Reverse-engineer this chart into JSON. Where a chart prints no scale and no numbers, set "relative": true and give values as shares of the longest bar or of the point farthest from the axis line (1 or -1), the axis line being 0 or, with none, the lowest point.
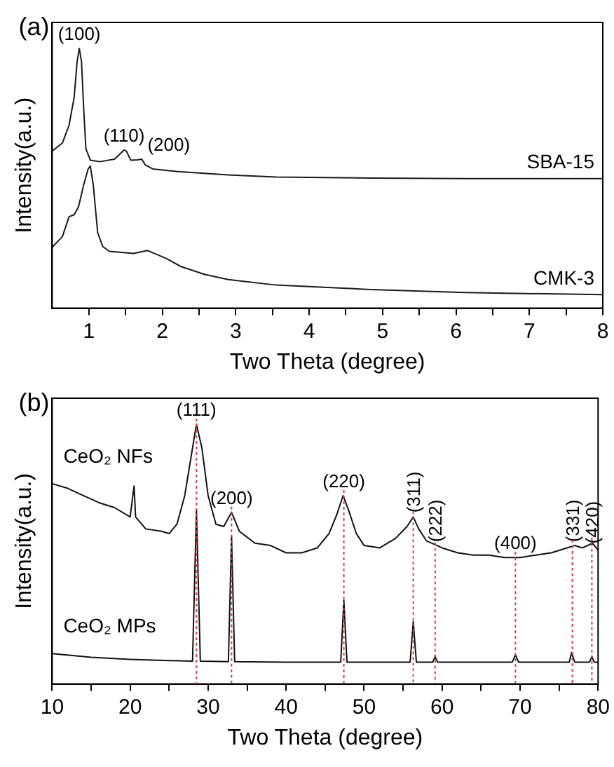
{
  "chart_data": [
    {
      "type": "line",
      "title": "(a)",
      "xlabel": "Two Theta (degree)",
      "ylabel": "Intensity(a.u.)",
      "relative": true,
      "tick_labels": "x",
      "xlim": [
        0.5,
        8
      ],
      "xticks": [
        1,
        {
          "value": 1.5,
          "label": null
        },
        2,
        {
          "value": 2.5,
          "label": null
        },
        3,
        {
          "value": 3.5,
          "label": null
        },
        4,
        {
          "value": 4.5,
          "label": null
        },
        5,
        {
          "value": 5.5,
          "label": null
        },
        6,
        {
          "value": 6.5,
          "label": null
        },
        7,
        {
          "value": 7.5,
          "label": null
        },
        8
      ],
      "annotations": [
        {
          "text": "(100)",
          "x": 0.87,
          "y": 1.0
        },
        {
          "text": "(110)",
          "x": 1.48,
          "y": 0.609
        },
        {
          "text": "(200)",
          "x": 1.72,
          "y": 0.574
        }
      ],
      "series": [
        {
          "name": "SBA-15",
          "color": "#1a1a1a",
          "x": [
            0.5,
            0.64,
            0.73,
            0.8,
            0.84,
            0.87,
            0.9,
            0.93,
            0.96,
            1.02,
            1.15,
            1.35,
            1.48,
            1.51,
            1.57,
            1.67,
            1.72,
            1.77,
            1.87,
            2.25,
            2.9,
            3.55,
            4.84,
            6.13,
            8.0
          ],
          "values": [
            0.605,
            0.636,
            0.704,
            0.812,
            0.949,
            1.0,
            0.949,
            0.766,
            0.613,
            0.57,
            0.564,
            0.574,
            0.609,
            0.605,
            0.57,
            0.571,
            0.574,
            0.551,
            0.536,
            0.525,
            0.513,
            0.505,
            0.501,
            0.499,
            0.499
          ]
        },
        {
          "name": "CMK-3",
          "color": "#1a1a1a",
          "x": [
            0.5,
            0.64,
            0.73,
            0.8,
            0.86,
            0.93,
            0.99,
            1.02,
            1.06,
            1.12,
            1.19,
            1.28,
            1.61,
            1.8,
            2.06,
            2.25,
            2.58,
            2.9,
            3.55,
            4.84,
            6.13,
            8.0
          ],
          "values": [
            0.234,
            0.276,
            0.352,
            0.36,
            0.391,
            0.475,
            0.536,
            0.547,
            0.475,
            0.291,
            0.237,
            0.219,
            0.211,
            0.222,
            0.191,
            0.161,
            0.13,
            0.11,
            0.089,
            0.072,
            0.06,
            0.052
          ]
        }
      ]
    },
    {
      "type": "line",
      "title": "(b)",
      "xlabel": "Two Theta (degree)",
      "ylabel": "Intensity(a.u.)",
      "relative": true,
      "tick_labels": "x",
      "xlim": [
        10,
        80
      ],
      "xticks": [
        10,
        {
          "value": 15,
          "label": null
        },
        20,
        {
          "value": 25,
          "label": null
        },
        30,
        {
          "value": 35,
          "label": null
        },
        40,
        {
          "value": 45,
          "label": null
        },
        50,
        {
          "value": 55,
          "label": null
        },
        60,
        {
          "value": 65,
          "label": null
        },
        70,
        {
          "value": 75,
          "label": null
        },
        80
      ],
      "ref_lines": [
        {
          "axis": "x",
          "value": 28.5,
          "color": "#d04040",
          "line_style": "dotted"
        },
        {
          "axis": "x",
          "value": 33.0,
          "color": "#d04040",
          "line_style": "dotted"
        },
        {
          "axis": "x",
          "value": 47.4,
          "color": "#d04040",
          "line_style": "dotted"
        },
        {
          "axis": "x",
          "value": 56.3,
          "color": "#d04040",
          "line_style": "dotted"
        },
        {
          "axis": "x",
          "value": 59.1,
          "color": "#d04040",
          "line_style": "dotted"
        },
        {
          "axis": "x",
          "value": 69.4,
          "color": "#d04040",
          "line_style": "dotted"
        },
        {
          "axis": "x",
          "value": 76.7,
          "color": "#d04040",
          "line_style": "dotted"
        },
        {
          "axis": "x",
          "value": 79.2,
          "color": "#d04040",
          "line_style": "dotted"
        }
      ],
      "annotations": [
        {
          "text": "(111)",
          "x": 28.5,
          "y": 1.0
        },
        {
          "text": "(200)",
          "x": 33.0,
          "y": 0.661
        },
        {
          "text": "(220)",
          "x": 47.4,
          "y": 0.725
        },
        {
          "text": "(311)",
          "x": 56.3,
          "y": 0.643
        },
        {
          "text": "(222)",
          "x": 59.1,
          "y": 0.53
        },
        {
          "text": "(400)",
          "x": 69.4,
          "y": 0.487
        },
        {
          "text": "(331)",
          "x": 76.7,
          "y": 0.53
        },
        {
          "text": "(420)",
          "x": 79.2,
          "y": 0.524
        }
      ],
      "series": [
        {
          "name": "CeO₂ NFs",
          "color": "#111111",
          "x": [
            10,
            12,
            14,
            16,
            18,
            20,
            20.5,
            20.7,
            22,
            24,
            25,
            26,
            27,
            27.8,
            28.5,
            29.2,
            30,
            31,
            32,
            33,
            34,
            36,
            38,
            40,
            42,
            44,
            45.5,
            46.5,
            47.3,
            48,
            49,
            50,
            52,
            54,
            55.5,
            56.3,
            57,
            58,
            60,
            62,
            64,
            66,
            68,
            70,
            72,
            74,
            76,
            77,
            78,
            79.3,
            80
          ],
          "values": [
            0.771,
            0.753,
            0.725,
            0.698,
            0.679,
            0.643,
            0.762,
            0.643,
            0.597,
            0.588,
            0.579,
            0.615,
            0.725,
            0.872,
            1.0,
            0.908,
            0.725,
            0.615,
            0.606,
            0.661,
            0.588,
            0.542,
            0.533,
            0.505,
            0.505,
            0.524,
            0.579,
            0.652,
            0.725,
            0.67,
            0.579,
            0.533,
            0.524,
            0.56,
            0.606,
            0.643,
            0.597,
            0.551,
            0.524,
            0.505,
            0.496,
            0.496,
            0.487,
            0.487,
            0.496,
            0.505,
            0.524,
            0.533,
            0.524,
            0.542,
            0.515
          ]
        },
        {
          "name": "CeO₂ MPs",
          "color": "#111111",
          "x": [
            10,
            15,
            20,
            25,
            28.0,
            28.5,
            29.0,
            32.6,
            33.0,
            33.4,
            40,
            47.0,
            47.4,
            47.8,
            55.9,
            56.3,
            56.7,
            58.8,
            59.1,
            59.4,
            69.0,
            69.4,
            69.8,
            76.3,
            76.6,
            77.0,
            78.9,
            79.2,
            79.5,
            80
          ],
          "values": [
            0.117,
            0.103,
            0.095,
            0.09,
            0.088,
            0.67,
            0.088,
            0.086,
            0.57,
            0.086,
            0.084,
            0.084,
            0.322,
            0.084,
            0.084,
            0.24,
            0.084,
            0.084,
            0.106,
            0.084,
            0.084,
            0.112,
            0.084,
            0.084,
            0.121,
            0.084,
            0.084,
            0.106,
            0.084,
            0.084
          ]
        }
      ]
    }
  ]
}
